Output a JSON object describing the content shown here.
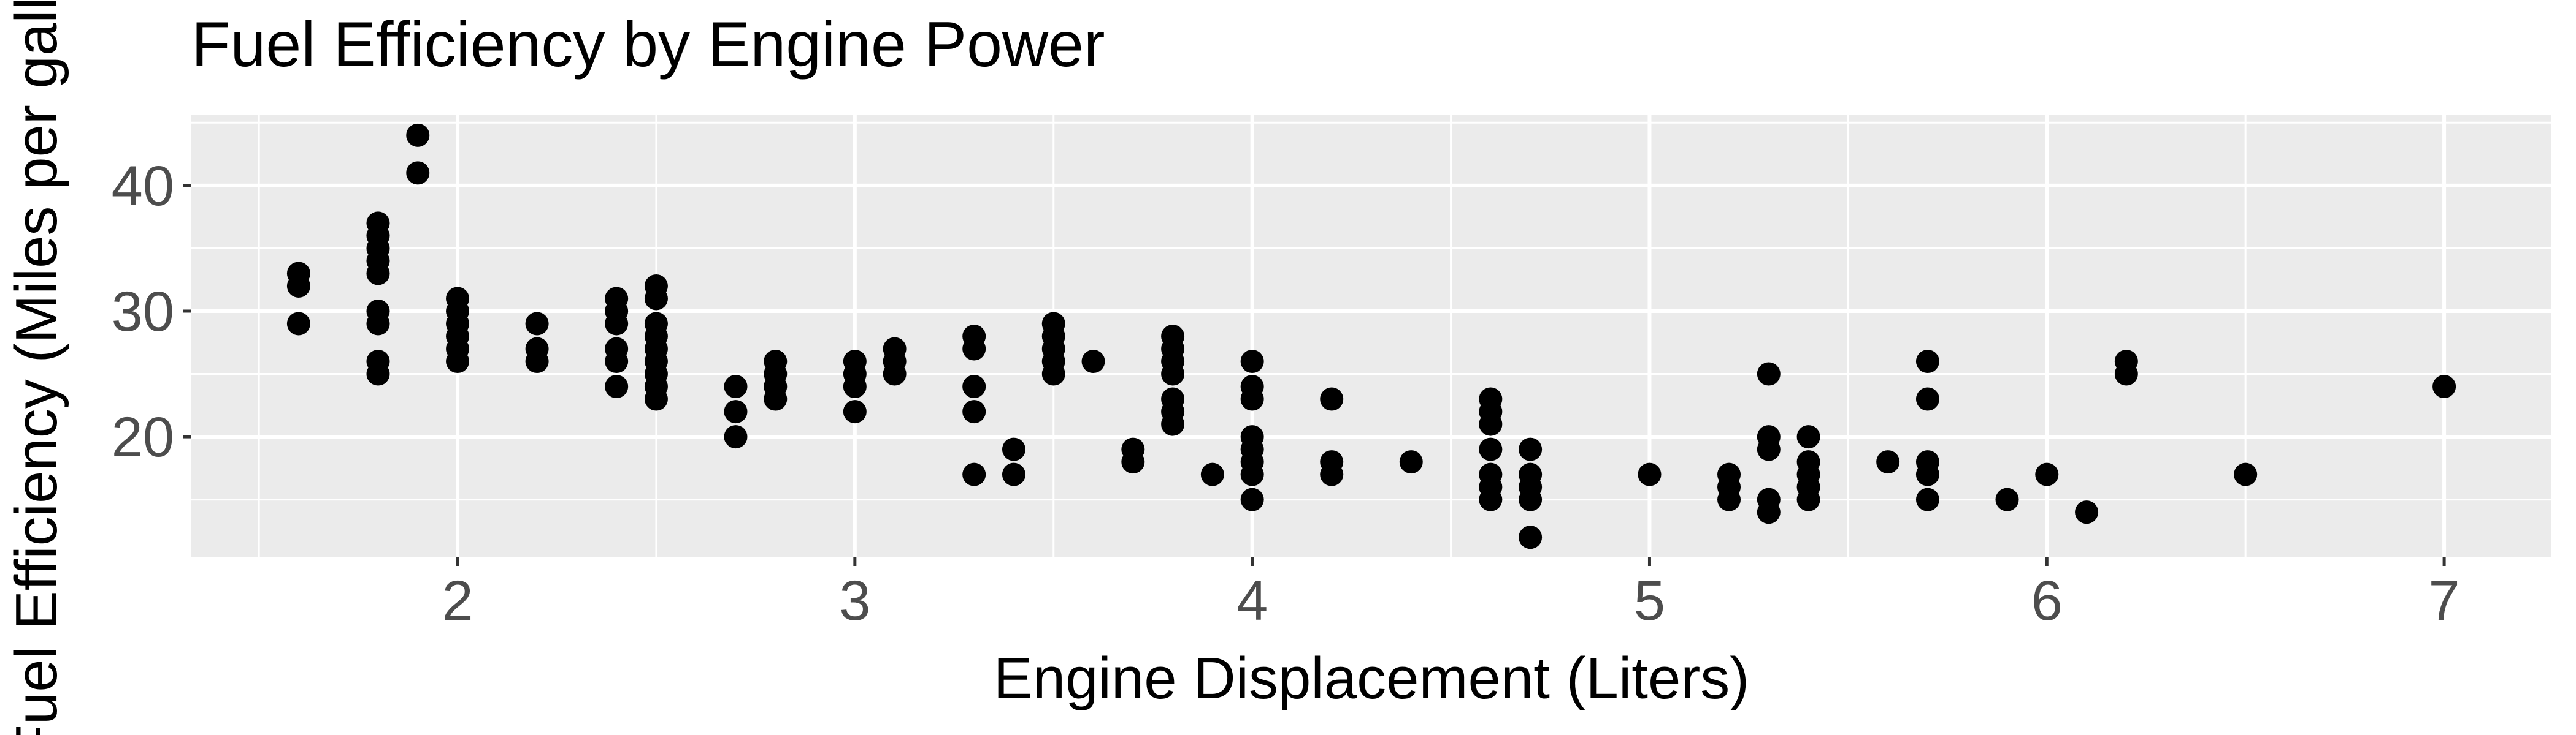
{
  "chart_data": {
    "type": "scatter",
    "title": "Fuel Efficiency by Engine Power",
    "xlabel": "Engine Displacement (Liters)",
    "ylabel": "Fuel Efficiency (Miles per gallon)",
    "xlim": [
      1.33,
      7.27
    ],
    "ylim": [
      10.4,
      45.6
    ],
    "x_ticks": [
      2,
      3,
      4,
      5,
      6,
      7
    ],
    "y_ticks": [
      20,
      30,
      40
    ],
    "grid": true,
    "legend": "none",
    "colors": {
      "panel": "#ebebeb",
      "grid": "#ffffff",
      "point": "#000000",
      "text": "#000000",
      "tick_text": "#4d4d4d"
    },
    "points": [
      [
        1.6,
        33
      ],
      [
        1.6,
        32
      ],
      [
        1.6,
        29
      ],
      [
        1.8,
        37
      ],
      [
        1.8,
        36
      ],
      [
        1.8,
        35
      ],
      [
        1.8,
        34
      ],
      [
        1.8,
        33
      ],
      [
        1.8,
        30
      ],
      [
        1.8,
        29
      ],
      [
        1.8,
        26
      ],
      [
        1.8,
        25
      ],
      [
        1.9,
        44
      ],
      [
        1.9,
        41
      ],
      [
        2.0,
        31
      ],
      [
        2.0,
        30
      ],
      [
        2.0,
        29
      ],
      [
        2.0,
        28
      ],
      [
        2.0,
        27
      ],
      [
        2.0,
        26
      ],
      [
        2.2,
        29
      ],
      [
        2.2,
        27
      ],
      [
        2.2,
        26
      ],
      [
        2.4,
        31
      ],
      [
        2.4,
        30
      ],
      [
        2.4,
        29
      ],
      [
        2.4,
        27
      ],
      [
        2.4,
        26
      ],
      [
        2.4,
        24
      ],
      [
        2.5,
        32
      ],
      [
        2.5,
        31
      ],
      [
        2.5,
        29
      ],
      [
        2.5,
        28
      ],
      [
        2.5,
        27
      ],
      [
        2.5,
        26
      ],
      [
        2.5,
        25
      ],
      [
        2.5,
        24
      ],
      [
        2.5,
        23
      ],
      [
        2.7,
        24
      ],
      [
        2.7,
        22
      ],
      [
        2.7,
        20
      ],
      [
        2.8,
        26
      ],
      [
        2.8,
        25
      ],
      [
        2.8,
        24
      ],
      [
        2.8,
        23
      ],
      [
        3.0,
        26
      ],
      [
        3.0,
        25
      ],
      [
        3.0,
        24
      ],
      [
        3.0,
        22
      ],
      [
        3.1,
        27
      ],
      [
        3.1,
        26
      ],
      [
        3.1,
        25
      ],
      [
        3.3,
        28
      ],
      [
        3.3,
        27
      ],
      [
        3.3,
        24
      ],
      [
        3.3,
        22
      ],
      [
        3.3,
        17
      ],
      [
        3.4,
        19
      ],
      [
        3.4,
        17
      ],
      [
        3.5,
        29
      ],
      [
        3.5,
        28
      ],
      [
        3.5,
        27
      ],
      [
        3.5,
        26
      ],
      [
        3.5,
        25
      ],
      [
        3.6,
        26
      ],
      [
        3.7,
        19
      ],
      [
        3.7,
        18
      ],
      [
        3.8,
        28
      ],
      [
        3.8,
        27
      ],
      [
        3.8,
        26
      ],
      [
        3.8,
        25
      ],
      [
        3.8,
        23
      ],
      [
        3.8,
        22
      ],
      [
        3.8,
        21
      ],
      [
        3.9,
        17
      ],
      [
        4.0,
        26
      ],
      [
        4.0,
        24
      ],
      [
        4.0,
        23
      ],
      [
        4.0,
        20
      ],
      [
        4.0,
        19
      ],
      [
        4.0,
        18
      ],
      [
        4.0,
        17
      ],
      [
        4.0,
        15
      ],
      [
        4.2,
        23
      ],
      [
        4.2,
        18
      ],
      [
        4.2,
        17
      ],
      [
        4.4,
        18
      ],
      [
        4.6,
        23
      ],
      [
        4.6,
        22
      ],
      [
        4.6,
        21
      ],
      [
        4.6,
        19
      ],
      [
        4.6,
        17
      ],
      [
        4.6,
        16
      ],
      [
        4.6,
        15
      ],
      [
        4.7,
        19
      ],
      [
        4.7,
        17
      ],
      [
        4.7,
        16
      ],
      [
        4.7,
        15
      ],
      [
        4.7,
        12
      ],
      [
        5.0,
        17
      ],
      [
        5.2,
        17
      ],
      [
        5.2,
        16
      ],
      [
        5.2,
        15
      ],
      [
        5.3,
        25
      ],
      [
        5.3,
        20
      ],
      [
        5.3,
        19
      ],
      [
        5.3,
        15
      ],
      [
        5.3,
        14
      ],
      [
        5.4,
        20
      ],
      [
        5.4,
        18
      ],
      [
        5.4,
        17
      ],
      [
        5.4,
        16
      ],
      [
        5.4,
        15
      ],
      [
        5.6,
        18
      ],
      [
        5.7,
        26
      ],
      [
        5.7,
        23
      ],
      [
        5.7,
        18
      ],
      [
        5.7,
        17
      ],
      [
        5.7,
        15
      ],
      [
        5.9,
        15
      ],
      [
        6.0,
        17
      ],
      [
        6.1,
        14
      ],
      [
        6.2,
        26
      ],
      [
        6.2,
        25
      ],
      [
        6.5,
        17
      ],
      [
        7.0,
        24
      ]
    ]
  }
}
